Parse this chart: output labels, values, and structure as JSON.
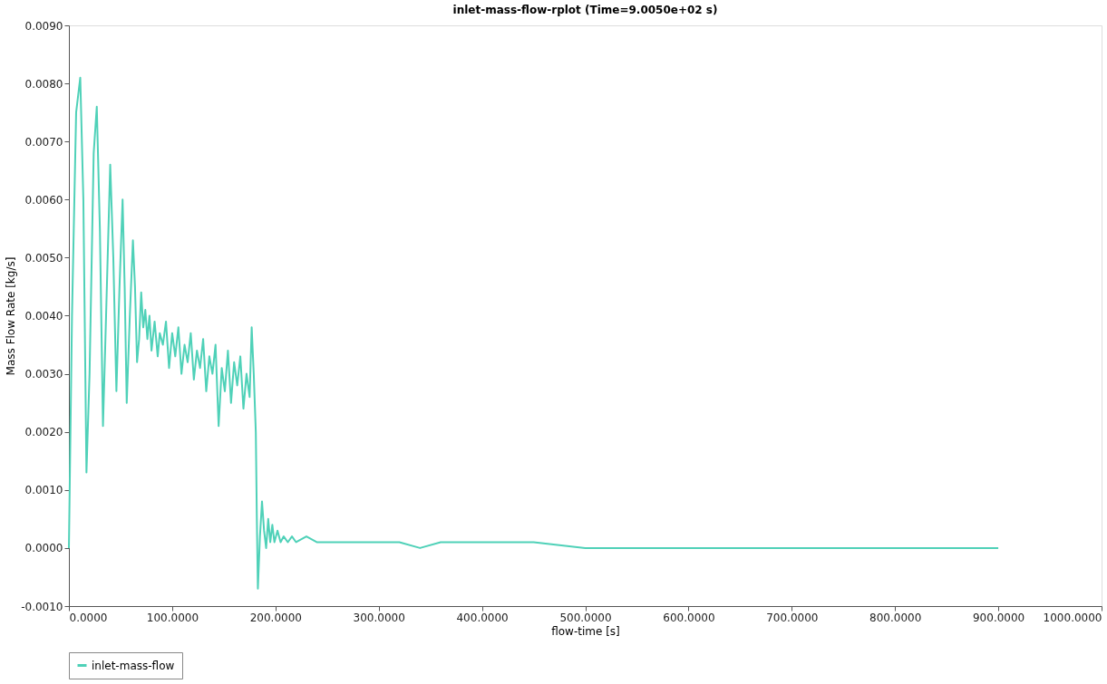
{
  "chart_data": {
    "type": "line",
    "title": "inlet-mass-flow-rplot (Time=9.0050e+02 s)",
    "xlabel": "flow-time [s]",
    "ylabel": "Mass Flow Rate [kg/s]",
    "xlim": [
      0,
      1000
    ],
    "xticks": [
      {
        "value": 0,
        "label": "0.0000"
      },
      {
        "value": 100,
        "label": "100.0000"
      },
      {
        "value": 200,
        "label": "200.0000"
      },
      {
        "value": 300,
        "label": "300.0000"
      },
      {
        "value": 400,
        "label": "400.0000"
      },
      {
        "value": 500,
        "label": "500.0000"
      },
      {
        "value": 600,
        "label": "600.0000"
      },
      {
        "value": 700,
        "label": "700.0000"
      },
      {
        "value": 800,
        "label": "800.0000"
      },
      {
        "value": 900,
        "label": "900.0000"
      },
      {
        "value": 1000,
        "label": "1000.0000"
      }
    ],
    "ylim": [
      -0.001,
      0.009
    ],
    "yticks": [
      {
        "value": -0.001,
        "label": "-0.0010"
      },
      {
        "value": 0,
        "label": "0.0000"
      },
      {
        "value": 0.001,
        "label": "0.0010"
      },
      {
        "value": 0.002,
        "label": "0.0020"
      },
      {
        "value": 0.003,
        "label": "0.0030"
      },
      {
        "value": 0.004,
        "label": "0.0040"
      },
      {
        "value": 0.005,
        "label": "0.0050"
      },
      {
        "value": 0.006,
        "label": "0.0060"
      },
      {
        "value": 0.007,
        "label": "0.0070"
      },
      {
        "value": 0.008,
        "label": "0.0080"
      },
      {
        "value": 0.009,
        "label": "0.0090"
      }
    ],
    "grid": false,
    "legend": "bottom",
    "marker": "none",
    "line_style": "solid",
    "series": [
      {
        "name": "inlet-mass-flow",
        "color": "#4fd1b8",
        "x": [
          0,
          3,
          7,
          11,
          14,
          17,
          20,
          24,
          27,
          30,
          33,
          36,
          40,
          43,
          46,
          49,
          52,
          54,
          56,
          59,
          62,
          64,
          66,
          68,
          70,
          72,
          74,
          76,
          78,
          80,
          83,
          86,
          88,
          91,
          94,
          97,
          100,
          103,
          106,
          109,
          112,
          115,
          118,
          121,
          124,
          127,
          130,
          133,
          136,
          139,
          142,
          145,
          148,
          151,
          154,
          157,
          160,
          163,
          166,
          169,
          172,
          175,
          177,
          179,
          181,
          182,
          183,
          185,
          187,
          189,
          191,
          193,
          195,
          197,
          199,
          202,
          205,
          208,
          212,
          216,
          220,
          230,
          240,
          250,
          270,
          300,
          320,
          340,
          360,
          400,
          450,
          500,
          550,
          600,
          650,
          700,
          750,
          800,
          850,
          900
        ],
        "values": [
          0.0,
          0.004,
          0.0075,
          0.0081,
          0.006,
          0.0013,
          0.003,
          0.0068,
          0.0076,
          0.0055,
          0.0021,
          0.004,
          0.0066,
          0.005,
          0.0027,
          0.0045,
          0.006,
          0.0045,
          0.0025,
          0.004,
          0.0053,
          0.0045,
          0.0032,
          0.0036,
          0.0044,
          0.0038,
          0.0041,
          0.0036,
          0.004,
          0.0034,
          0.0039,
          0.0033,
          0.0037,
          0.0035,
          0.0039,
          0.0031,
          0.0037,
          0.0033,
          0.0038,
          0.003,
          0.0035,
          0.0032,
          0.0037,
          0.0029,
          0.0034,
          0.0031,
          0.0036,
          0.0027,
          0.0033,
          0.003,
          0.0035,
          0.0021,
          0.0031,
          0.0027,
          0.0034,
          0.0025,
          0.0032,
          0.0028,
          0.0033,
          0.0024,
          0.003,
          0.0026,
          0.0038,
          0.003,
          0.002,
          0.0005,
          -0.0007,
          0.0002,
          0.0008,
          0.0003,
          0.0,
          0.0005,
          0.0001,
          0.0004,
          0.0001,
          0.0003,
          0.0001,
          0.0002,
          0.0001,
          0.0002,
          0.0001,
          0.0002,
          0.0001,
          0.0001,
          0.0001,
          0.0001,
          0.0001,
          0.0,
          0.0001,
          0.0001,
          0.0001,
          0.0,
          0.0,
          0.0,
          0.0,
          0.0,
          0.0,
          0.0,
          0.0,
          0.0
        ]
      }
    ]
  }
}
